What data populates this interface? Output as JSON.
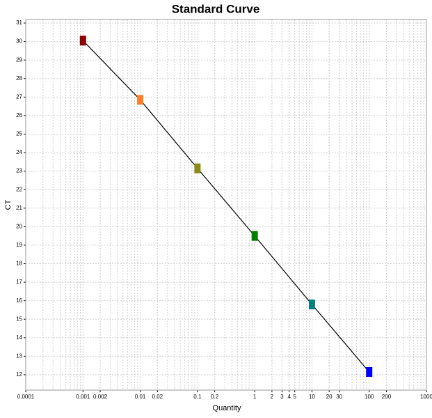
{
  "chart_data": {
    "type": "scatter",
    "title": "Standard Curve",
    "xlabel": "Quantity",
    "ylabel": "CT",
    "x": [
      0.001,
      0.01,
      0.1,
      1,
      10,
      100
    ],
    "values": [
      30.05,
      26.85,
      23.15,
      19.5,
      15.8,
      12.15
    ],
    "colors": [
      "#8b0000",
      "#ff7f27",
      "#8b8b1a",
      "#008000",
      "#008080",
      "#0000ff"
    ],
    "line_color": "#000000",
    "xscale": "log",
    "xlim": [
      0.0001,
      1000
    ],
    "xticks": [
      0.0001,
      0.001,
      0.002,
      0.01,
      0.02,
      0.1,
      0.2,
      1,
      2,
      3,
      4,
      5,
      10,
      20,
      30,
      100,
      200,
      1000
    ],
    "ylim": [
      11.17,
      31.19
    ],
    "yticks": [
      12,
      13,
      14,
      15,
      16,
      17,
      18,
      19,
      20,
      21,
      22,
      23,
      24,
      25,
      26,
      27,
      28,
      29,
      30,
      31
    ],
    "grid": true
  }
}
